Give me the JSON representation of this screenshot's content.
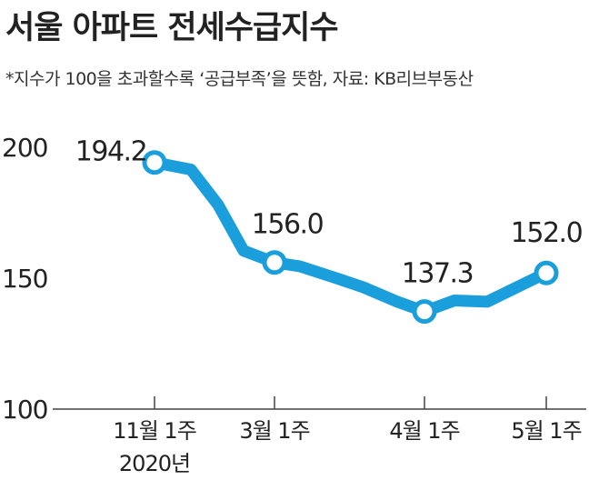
{
  "title": "서울 아파트 전세수급지수",
  "subtitle": "*지수가 100을 초과할수록 ‘공급부족’을 뜻함, 자료: KB리브부동산",
  "colors": {
    "line": "#1a9fdc",
    "marker_fill": "#ffffff",
    "axis": "#444444",
    "text": "#222222"
  },
  "chart_data": {
    "type": "line",
    "title": "서울 아파트 전세수급지수",
    "ylim": [
      100,
      200
    ],
    "y_ticks": [
      200,
      150,
      100
    ],
    "x_tick_labels": [
      "11월 1주",
      "3월 1주",
      "4월 1주",
      "5월 1주"
    ],
    "x_year_label": "2020년",
    "series": [
      {
        "values": [
          194.2,
          191.5,
          178,
          160.5,
          156.0,
          154.5,
          150,
          146.5,
          141,
          137.3,
          141.5,
          141,
          152.0
        ]
      }
    ],
    "labeled_points": [
      {
        "index": 0,
        "value": 194.2,
        "label": "194.2"
      },
      {
        "index": 4,
        "value": 156.0,
        "label": "156.0"
      },
      {
        "index": 9,
        "value": 137.3,
        "label": "137.3"
      },
      {
        "index": 12,
        "value": 152.0,
        "label": "152.0"
      }
    ]
  }
}
